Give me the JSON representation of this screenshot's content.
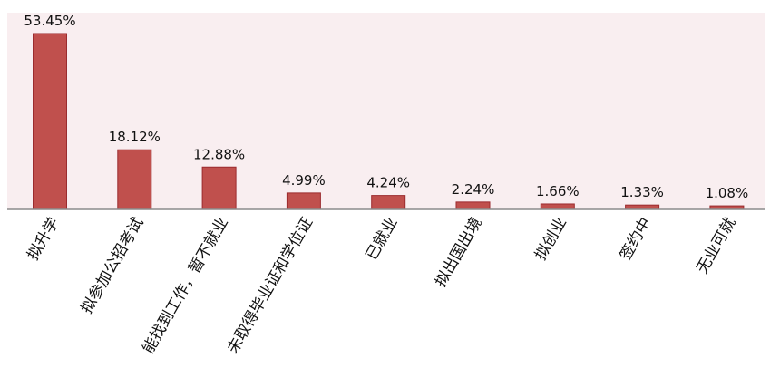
{
  "chart_data": {
    "type": "bar",
    "title": "",
    "xlabel": "",
    "ylabel": "",
    "ylim": [
      0,
      55
    ],
    "grid": false,
    "bar_color": "#c0504d",
    "background_color": "#f9eef0",
    "categories": [
      "拟升学",
      "拟参加公招考试",
      "能找到工作，暂不就业",
      "未取得毕业证和学位证",
      "已就业",
      "拟出国出境",
      "拟创业",
      "签约中",
      "无业可就"
    ],
    "values": [
      53.45,
      18.12,
      12.88,
      4.99,
      4.24,
      2.24,
      1.66,
      1.33,
      1.08
    ],
    "value_labels": [
      "53.45%",
      "18.12%",
      "12.88%",
      "4.99%",
      "4.24%",
      "2.24%",
      "1.66%",
      "1.33%",
      "1.08%"
    ]
  }
}
